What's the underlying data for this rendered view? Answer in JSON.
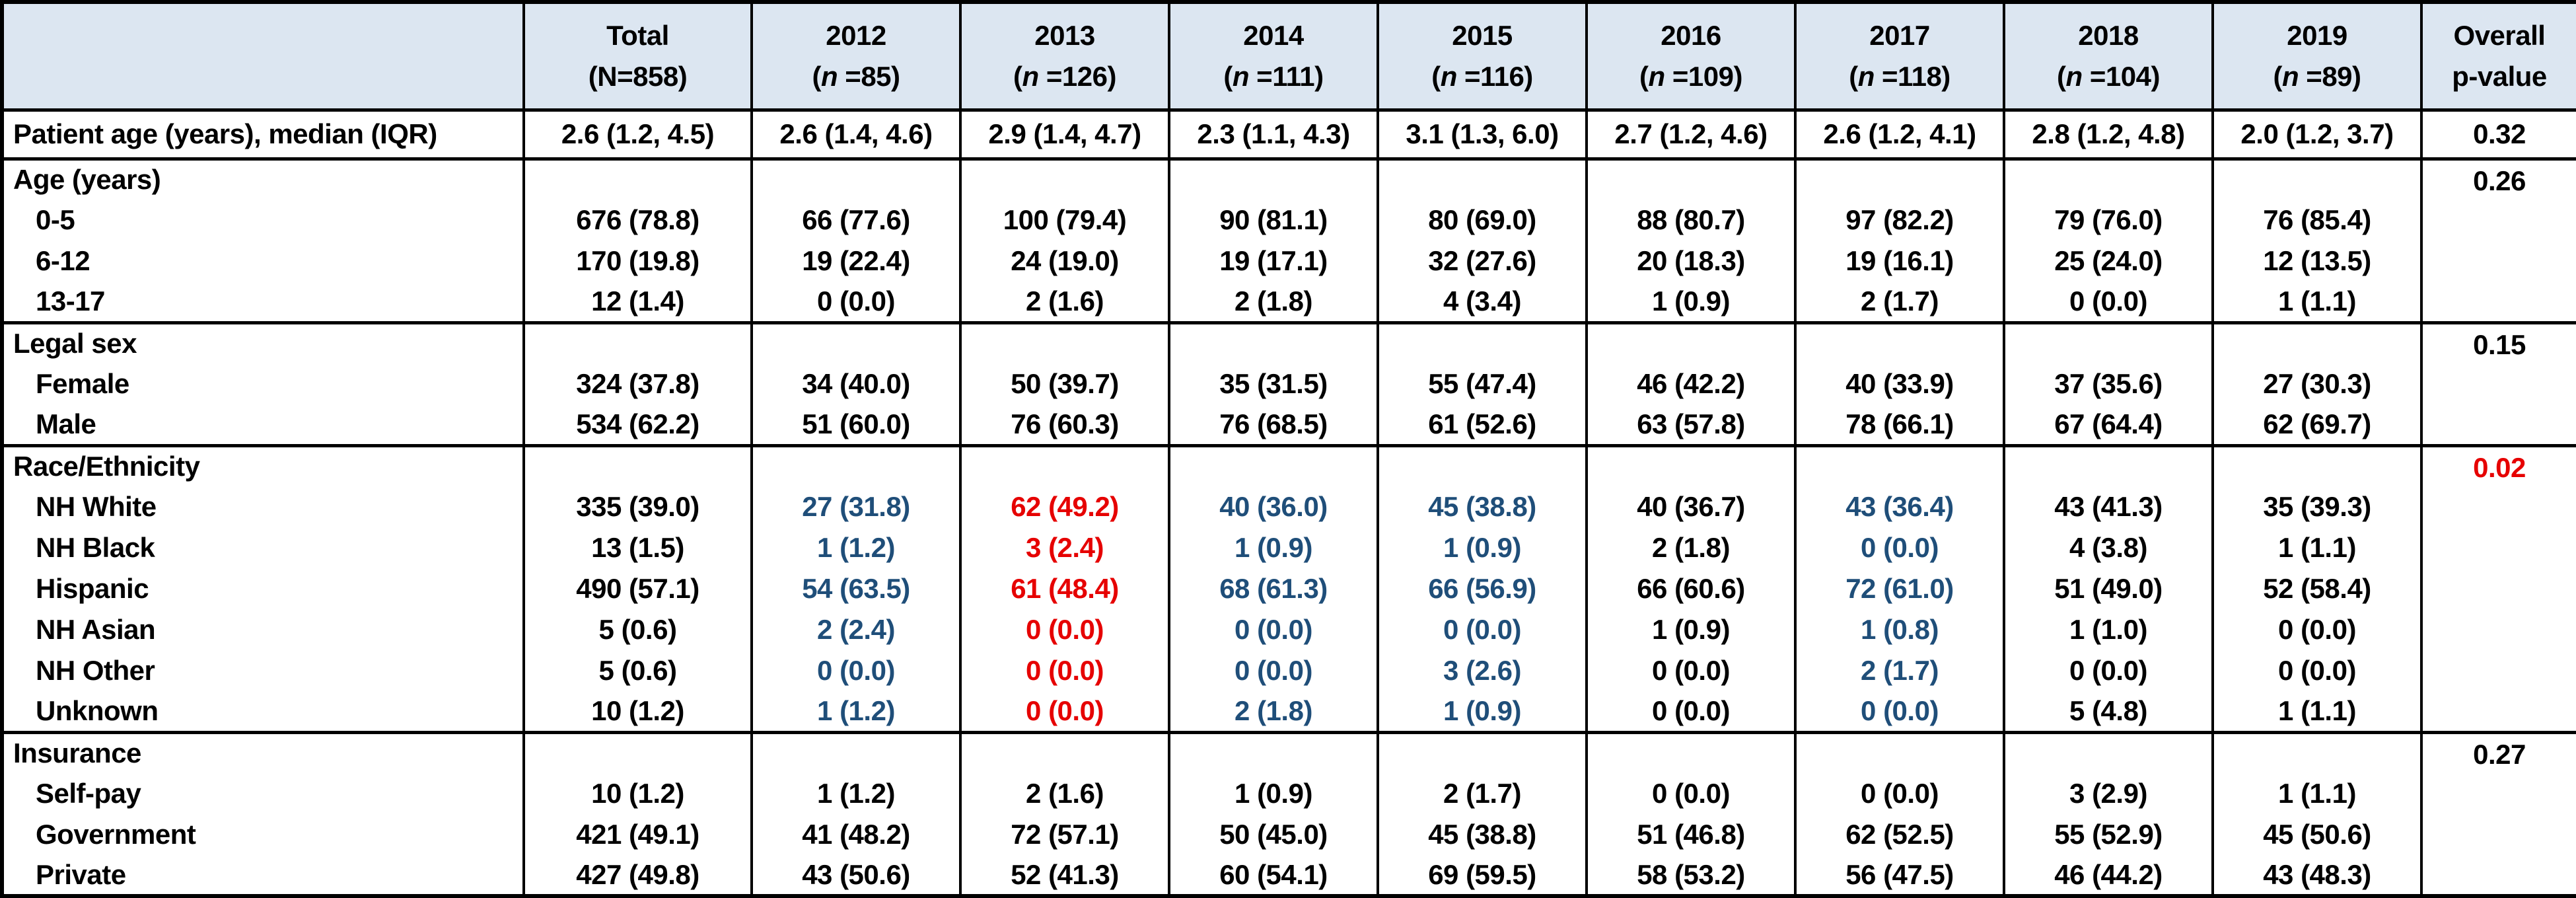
{
  "colors": {
    "header_bg": "#DCE6F1",
    "blue": "#1F4E79",
    "red": "#E60000",
    "text": "#000000",
    "border": "#000000"
  },
  "table": {
    "header": {
      "corner": "",
      "columns": [
        {
          "title": "Total",
          "open": "(",
          "symbol": "N",
          "italic": false,
          "rest": "=858)"
        },
        {
          "title": "2012",
          "open": "(",
          "symbol": "n",
          "italic": true,
          "rest": " =85)"
        },
        {
          "title": "2013",
          "open": "(",
          "symbol": "n",
          "italic": true,
          "rest": " =126)"
        },
        {
          "title": "2014",
          "open": "(",
          "symbol": "n",
          "italic": true,
          "rest": " =111)"
        },
        {
          "title": "2015",
          "open": "(",
          "symbol": "n",
          "italic": true,
          "rest": " =116)"
        },
        {
          "title": "2016",
          "open": "(",
          "symbol": "n",
          "italic": true,
          "rest": " =109)"
        },
        {
          "title": "2017",
          "open": "(",
          "symbol": "n",
          "italic": true,
          "rest": " =118)"
        },
        {
          "title": "2018",
          "open": "(",
          "symbol": "n",
          "italic": true,
          "rest": " =104)"
        },
        {
          "title": "2019",
          "open": "(",
          "symbol": "n",
          "italic": true,
          "rest": " =89)"
        }
      ],
      "p_header": {
        "line1": "Overall",
        "line2": "p-value"
      }
    },
    "sections": [
      {
        "type": "single",
        "label": "Patient age (years), median (IQR)",
        "values": [
          "2.6 (1.2, 4.5)",
          "2.6 (1.4, 4.6)",
          "2.9 (1.4, 4.7)",
          "2.3 (1.1, 4.3)",
          "3.1 (1.3, 6.0)",
          "2.7 (1.2, 4.6)",
          "2.6 (1.2, 4.1)",
          "2.8 (1.2, 4.8)",
          "2.0 (1.2, 3.7)"
        ],
        "value_colors": [
          "default",
          "default",
          "default",
          "default",
          "default",
          "default",
          "default",
          "default",
          "default"
        ],
        "p_value": "0.32",
        "p_color": "default"
      },
      {
        "type": "group",
        "label": "Age (years)",
        "p_value": "0.26",
        "p_color": "default",
        "value_colors": [
          "default",
          "default",
          "default",
          "default",
          "default",
          "default",
          "default",
          "default",
          "default"
        ],
        "rows": [
          {
            "label": "0-5",
            "values": [
              "676 (78.8)",
              "66 (77.6)",
              "100 (79.4)",
              "90 (81.1)",
              "80 (69.0)",
              "88 (80.7)",
              "97 (82.2)",
              "79 (76.0)",
              "76 (85.4)"
            ]
          },
          {
            "label": "6-12",
            "values": [
              "170 (19.8)",
              "19 (22.4)",
              "24 (19.0)",
              "19 (17.1)",
              "32 (27.6)",
              "20 (18.3)",
              "19 (16.1)",
              "25 (24.0)",
              "12 (13.5)"
            ]
          },
          {
            "label": "13-17",
            "values": [
              "12 (1.4)",
              "0 (0.0)",
              "2 (1.6)",
              "2 (1.8)",
              "4 (3.4)",
              "1 (0.9)",
              "2 (1.7)",
              "0 (0.0)",
              "1 (1.1)"
            ]
          }
        ]
      },
      {
        "type": "group",
        "label": "Legal sex",
        "p_value": "0.15",
        "p_color": "default",
        "value_colors": [
          "default",
          "default",
          "default",
          "default",
          "default",
          "default",
          "default",
          "default",
          "default"
        ],
        "rows": [
          {
            "label": "Female",
            "values": [
              "324 (37.8)",
              "34 (40.0)",
              "50 (39.7)",
              "35 (31.5)",
              "55 (47.4)",
              "46 (42.2)",
              "40 (33.9)",
              "37 (35.6)",
              "27 (30.3)"
            ]
          },
          {
            "label": "Male",
            "values": [
              "534 (62.2)",
              "51 (60.0)",
              "76 (60.3)",
              "76 (68.5)",
              "61 (52.6)",
              "63 (57.8)",
              "78 (66.1)",
              "67 (64.4)",
              "62 (69.7)"
            ]
          }
        ]
      },
      {
        "type": "group",
        "label": "Race/Ethnicity",
        "p_value": "0.02",
        "p_color": "red",
        "value_colors": [
          "default",
          "blue",
          "red",
          "blue",
          "blue",
          "default",
          "blue",
          "default",
          "default"
        ],
        "rows": [
          {
            "label": "NH White",
            "values": [
              "335 (39.0)",
              "27 (31.8)",
              "62 (49.2)",
              "40 (36.0)",
              "45 (38.8)",
              "40 (36.7)",
              "43 (36.4)",
              "43 (41.3)",
              "35 (39.3)"
            ]
          },
          {
            "label": "NH Black",
            "values": [
              "13 (1.5)",
              "1 (1.2)",
              "3 (2.4)",
              "1 (0.9)",
              "1 (0.9)",
              "2 (1.8)",
              "0 (0.0)",
              "4 (3.8)",
              "1 (1.1)"
            ]
          },
          {
            "label": "Hispanic",
            "values": [
              "490 (57.1)",
              "54 (63.5)",
              "61 (48.4)",
              "68 (61.3)",
              "66 (56.9)",
              "66 (60.6)",
              "72 (61.0)",
              "51 (49.0)",
              "52 (58.4)"
            ]
          },
          {
            "label": "NH Asian",
            "values": [
              "5 (0.6)",
              "2 (2.4)",
              "0 (0.0)",
              "0 (0.0)",
              "0 (0.0)",
              "1 (0.9)",
              "1 (0.8)",
              "1 (1.0)",
              "0 (0.0)"
            ]
          },
          {
            "label": "NH Other",
            "values": [
              "5 (0.6)",
              "0 (0.0)",
              "0 (0.0)",
              "0 (0.0)",
              "3 (2.6)",
              "0 (0.0)",
              "2 (1.7)",
              "0 (0.0)",
              "0 (0.0)"
            ]
          },
          {
            "label": "Unknown",
            "values": [
              "10 (1.2)",
              "1 (1.2)",
              "0 (0.0)",
              "2 (1.8)",
              "1 (0.9)",
              "0 (0.0)",
              "0 (0.0)",
              "5 (4.8)",
              "1 (1.1)"
            ]
          }
        ]
      },
      {
        "type": "group",
        "label": "Insurance",
        "p_value": "0.27",
        "p_color": "default",
        "value_colors": [
          "default",
          "default",
          "default",
          "default",
          "default",
          "default",
          "default",
          "default",
          "default"
        ],
        "rows": [
          {
            "label": "Self-pay",
            "values": [
              "10 (1.2)",
              "1 (1.2)",
              "2 (1.6)",
              "1 (0.9)",
              "2 (1.7)",
              "0 (0.0)",
              "0 (0.0)",
              "3 (2.9)",
              "1 (1.1)"
            ]
          },
          {
            "label": "Government",
            "values": [
              "421 (49.1)",
              "41 (48.2)",
              "72 (57.1)",
              "50 (45.0)",
              "45 (38.8)",
              "51 (46.8)",
              "62 (52.5)",
              "55 (52.9)",
              "45 (50.6)"
            ]
          },
          {
            "label": "Private",
            "values": [
              "427 (49.8)",
              "43 (50.6)",
              "52 (41.3)",
              "60 (54.1)",
              "69 (59.5)",
              "58 (53.2)",
              "56 (47.5)",
              "46 (44.2)",
              "43 (48.3)"
            ]
          }
        ]
      }
    ]
  }
}
